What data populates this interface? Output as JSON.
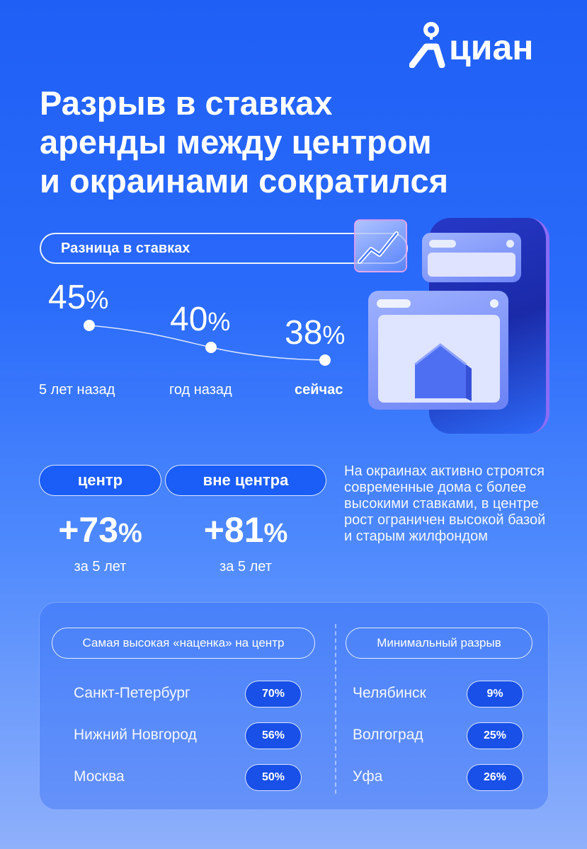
{
  "logo": {
    "text": "циан"
  },
  "title": {
    "lines": [
      "Разрыв в ставках",
      "аренды между центром",
      "и окраинами сократился"
    ]
  },
  "rate_gap": {
    "pill_label": "Разница в ставках",
    "points": [
      {
        "value": "45",
        "unit": "%",
        "period": "5 лет назад"
      },
      {
        "value": "40",
        "unit": "%",
        "period": "год назад"
      },
      {
        "value": "38",
        "unit": "%",
        "period": "сейчас"
      }
    ]
  },
  "growth": {
    "center": {
      "label": "центр",
      "value": "+73",
      "unit": "%",
      "period": "за 5 лет"
    },
    "outside": {
      "label": "вне центра",
      "value": "+81",
      "unit": "%",
      "period": "за 5 лет"
    }
  },
  "description": "На окраинах активно строятся современные дома с более высокими ставками, в центре рост ограничен высокой базой и старым жилфондом",
  "table": {
    "left": {
      "header": "Самая высокая «наценка» на центр",
      "rows": [
        {
          "city": "Санкт-Петербург",
          "value": "70%"
        },
        {
          "city": "Нижний Новгород",
          "value": "56%"
        },
        {
          "city": "Москва",
          "value": "50%"
        }
      ]
    },
    "right": {
      "header": "Минимальный разрыв",
      "rows": [
        {
          "city": "Челябинск",
          "value": "9%"
        },
        {
          "city": "Волгоград",
          "value": "25%"
        },
        {
          "city": "Уфа",
          "value": "26%"
        }
      ]
    }
  },
  "colors": {
    "brand_blue": "#1a5df7",
    "background_top": "#1f5ff5",
    "background_bottom": "#8fb0fb"
  }
}
